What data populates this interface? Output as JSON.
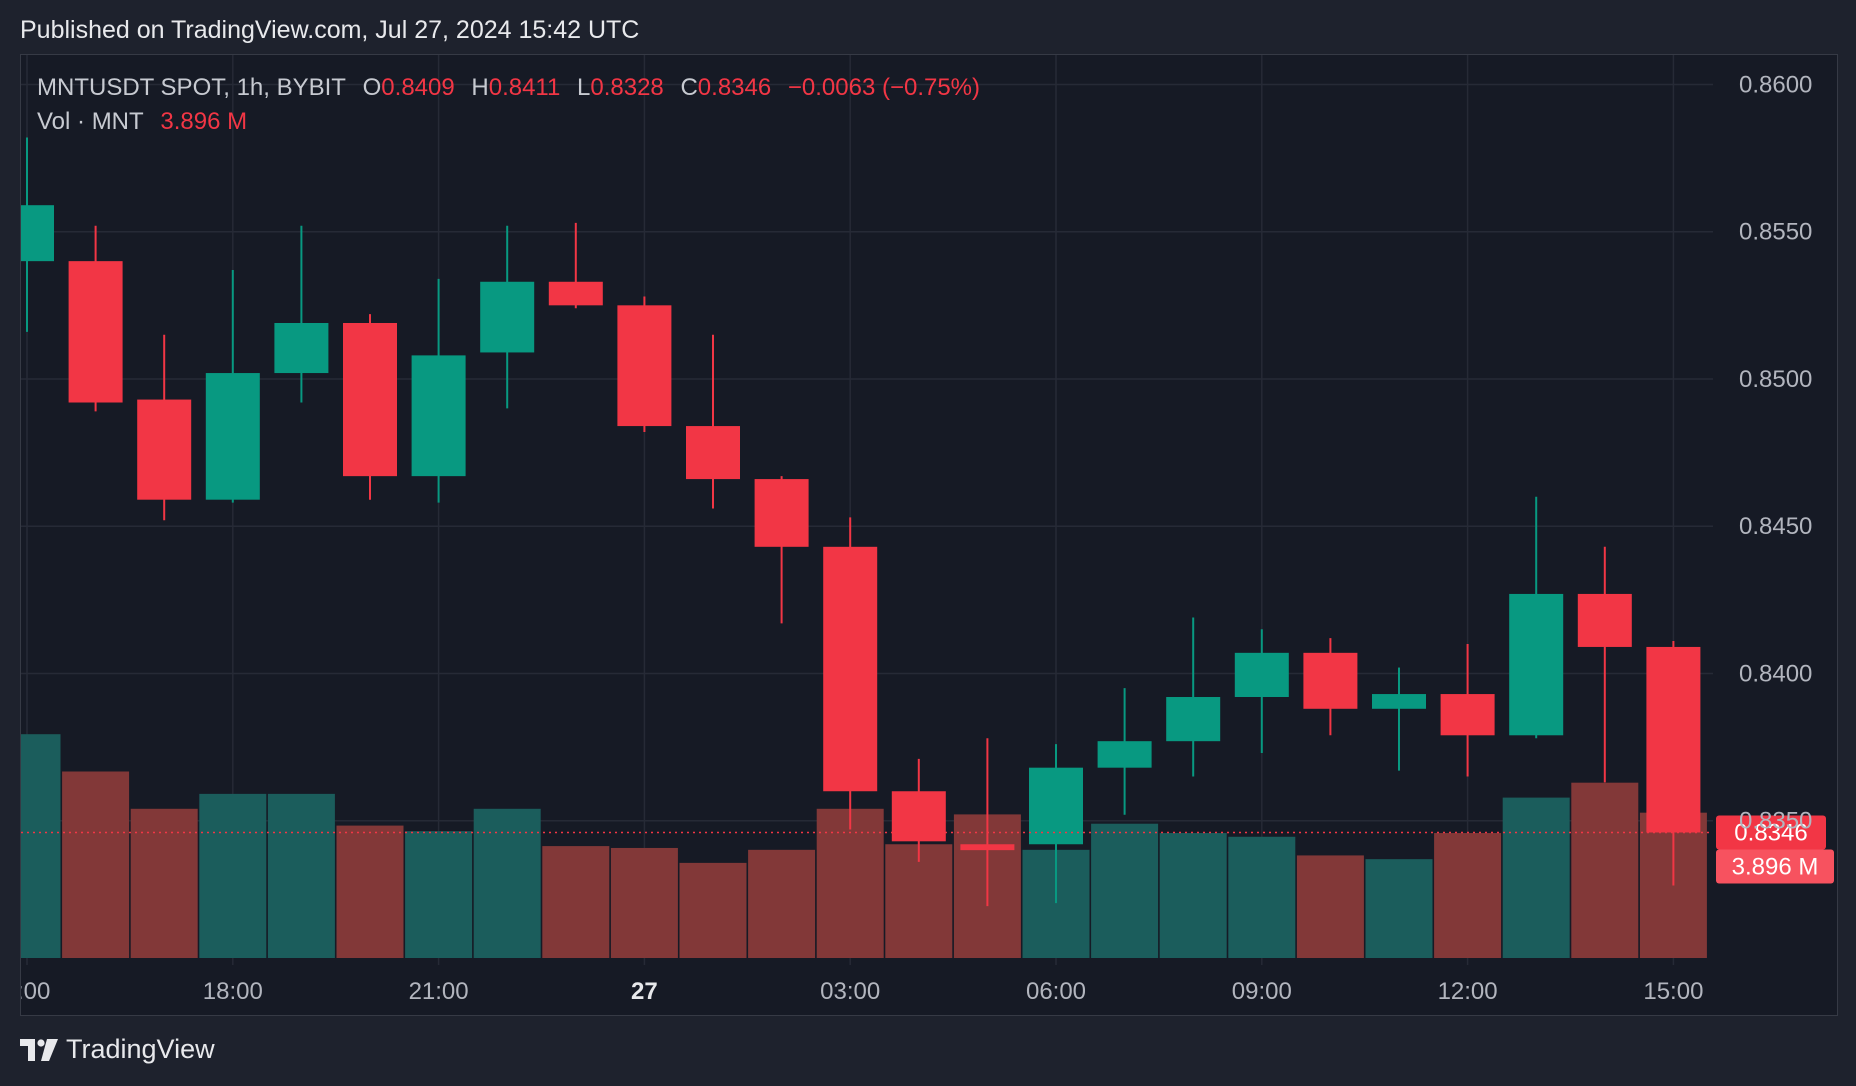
{
  "header": {
    "published": "Published on TradingView.com, Jul 27, 2024 15:42 UTC"
  },
  "legend": {
    "symbol": "MNTUSDT SPOT, 1h, BYBIT",
    "o_label": "O",
    "o_value": "0.8409",
    "h_label": "H",
    "h_value": "0.8411",
    "l_label": "L",
    "l_value": "0.8328",
    "c_label": "C",
    "c_value": "0.8346",
    "change": "−0.0063 (−0.75%)",
    "vol_label": "Vol · MNT",
    "vol_value": "3.896 M"
  },
  "footer": {
    "brand": "TradingView"
  },
  "colors": {
    "up": "#089981",
    "down": "#f23645",
    "up_volume": "#1b5d5c",
    "down_volume": "#823838",
    "background": "#161a25",
    "grid": "#262a36",
    "axis_text": "#b2b5be"
  },
  "chart_data": {
    "type": "candlestick",
    "interval": "1h",
    "ylim": [
      0.8301,
      0.861
    ],
    "y_ticks": [
      "0.8600",
      "0.8550",
      "0.8500",
      "0.8450",
      "0.8400",
      "0.8350"
    ],
    "x_ticks": [
      ":00",
      "18:00",
      "21:00",
      "27",
      "03:00",
      "06:00",
      "09:00",
      "12:00",
      "15:00"
    ],
    "last_price_label": "0.8346",
    "last_price": 0.8346,
    "volume_label": "3.896 M",
    "candles": [
      {
        "o": 0.854,
        "h": 0.8582,
        "l": 0.8516,
        "c": 0.8559
      },
      {
        "o": 0.854,
        "h": 0.8552,
        "l": 0.8489,
        "c": 0.8492
      },
      {
        "o": 0.8493,
        "h": 0.8515,
        "l": 0.8452,
        "c": 0.8459
      },
      {
        "o": 0.8459,
        "h": 0.8537,
        "l": 0.8458,
        "c": 0.8502
      },
      {
        "o": 0.8502,
        "h": 0.8552,
        "l": 0.8492,
        "c": 0.8519
      },
      {
        "o": 0.8519,
        "h": 0.8522,
        "l": 0.8459,
        "c": 0.8467
      },
      {
        "o": 0.8467,
        "h": 0.8534,
        "l": 0.8458,
        "c": 0.8508
      },
      {
        "o": 0.8509,
        "h": 0.8552,
        "l": 0.849,
        "c": 0.8533
      },
      {
        "o": 0.8533,
        "h": 0.8553,
        "l": 0.8524,
        "c": 0.8525
      },
      {
        "o": 0.8525,
        "h": 0.8528,
        "l": 0.8482,
        "c": 0.8484
      },
      {
        "o": 0.8484,
        "h": 0.8515,
        "l": 0.8456,
        "c": 0.8466
      },
      {
        "o": 0.8466,
        "h": 0.8467,
        "l": 0.8417,
        "c": 0.8443
      },
      {
        "o": 0.8443,
        "h": 0.8453,
        "l": 0.8347,
        "c": 0.836
      },
      {
        "o": 0.836,
        "h": 0.8371,
        "l": 0.8336,
        "c": 0.8343
      },
      {
        "o": 0.8342,
        "h": 0.8378,
        "l": 0.8321,
        "c": 0.834
      },
      {
        "o": 0.8342,
        "h": 0.8376,
        "l": 0.8322,
        "c": 0.8368
      },
      {
        "o": 0.8368,
        "h": 0.8395,
        "l": 0.8352,
        "c": 0.8377
      },
      {
        "o": 0.8377,
        "h": 0.8419,
        "l": 0.8365,
        "c": 0.8392
      },
      {
        "o": 0.8392,
        "h": 0.8415,
        "l": 0.8373,
        "c": 0.8407
      },
      {
        "o": 0.8407,
        "h": 0.8412,
        "l": 0.8379,
        "c": 0.8388
      },
      {
        "o": 0.8388,
        "h": 0.8402,
        "l": 0.8367,
        "c": 0.8393
      },
      {
        "o": 0.8393,
        "h": 0.841,
        "l": 0.8365,
        "c": 0.8379
      },
      {
        "o": 0.8379,
        "h": 0.846,
        "l": 0.8378,
        "c": 0.8427
      },
      {
        "o": 0.8427,
        "h": 0.8443,
        "l": 0.8363,
        "c": 0.8409
      },
      {
        "o": 0.8409,
        "h": 0.8411,
        "l": 0.8328,
        "c": 0.8346
      }
    ],
    "volumes": [
      6.0,
      5.0,
      4.0,
      4.4,
      4.4,
      3.55,
      3.4,
      4.0,
      3.0,
      2.95,
      2.55,
      2.9,
      4.0,
      3.05,
      3.85,
      2.9,
      3.6,
      3.35,
      3.25,
      2.75,
      2.65,
      3.35,
      4.3,
      4.7,
      3.896
    ]
  }
}
